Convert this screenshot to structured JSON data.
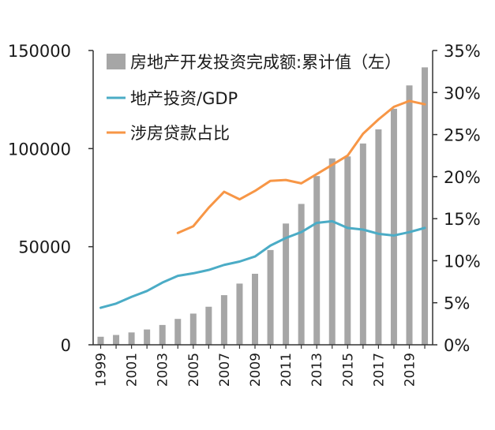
{
  "chart_data": {
    "type": "bar+line",
    "x": [
      1999,
      2000,
      2001,
      2002,
      2003,
      2004,
      2005,
      2006,
      2007,
      2008,
      2009,
      2010,
      2011,
      2012,
      2013,
      2014,
      2015,
      2016,
      2017,
      2018,
      2019,
      2020
    ],
    "x_tick_labels": [
      "1999",
      "2001",
      "2003",
      "2005",
      "2007",
      "2009",
      "2011",
      "2013",
      "2015",
      "2017",
      "2019"
    ],
    "left_axis": {
      "range": [
        0,
        150000
      ],
      "ticks": [
        "0",
        "50000",
        "100000",
        "150000"
      ],
      "tick_values": [
        0,
        50000,
        100000,
        150000
      ]
    },
    "right_axis": {
      "range": [
        0,
        35
      ],
      "ticks": [
        "0%",
        "5%",
        "10%",
        "15%",
        "20%",
        "25%",
        "30%",
        "35%"
      ],
      "tick_values": [
        0,
        5,
        10,
        15,
        20,
        25,
        30,
        35
      ]
    },
    "series": [
      {
        "name": "房地产开发投资完成额:累计值（左）",
        "type": "bar",
        "axis": "left",
        "color": "#a6a6a6",
        "values": [
          4100,
          5000,
          6300,
          7800,
          10100,
          13200,
          15900,
          19400,
          25300,
          31200,
          36200,
          48300,
          61800,
          71800,
          86000,
          95000,
          96000,
          102600,
          109800,
          120300,
          132200,
          141400
        ]
      },
      {
        "name": "地产投资/GDP",
        "type": "line",
        "axis": "right",
        "color": "#4bacc6",
        "values": [
          4.4,
          4.9,
          5.7,
          6.4,
          7.4,
          8.2,
          8.5,
          8.9,
          9.5,
          9.9,
          10.5,
          11.8,
          12.7,
          13.4,
          14.5,
          14.7,
          13.9,
          13.7,
          13.2,
          13.0,
          13.4,
          13.9
        ]
      },
      {
        "name": "涉房贷款占比",
        "type": "line",
        "axis": "right",
        "color": "#f79646",
        "values": [
          null,
          null,
          null,
          null,
          null,
          13.3,
          14.1,
          16.3,
          18.2,
          17.3,
          18.3,
          19.5,
          19.6,
          19.2,
          20.3,
          21.4,
          22.5,
          25.1,
          26.8,
          28.3,
          29.0,
          28.6
        ]
      }
    ],
    "legend_position": "top-center"
  }
}
